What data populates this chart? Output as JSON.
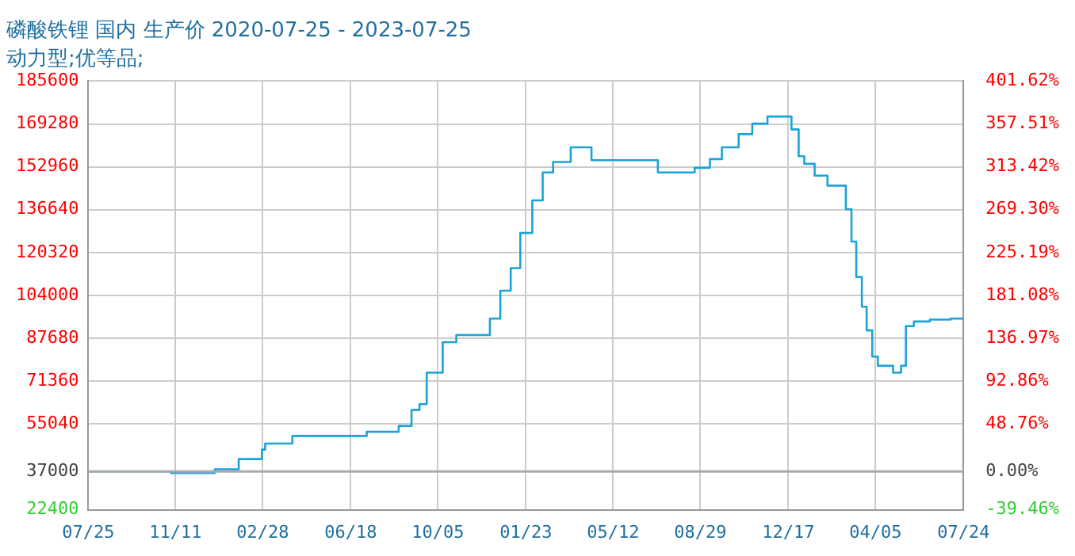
{
  "chart_data": {
    "type": "step",
    "title": "磷酸铁锂 国内 生产价 2020-07-25 - 2023-07-25",
    "subtitle": "动力型;优等品;",
    "x": [
      "2020-07-25",
      "2020-11-05",
      "2020-12-30",
      "2021-01-29",
      "2021-02-27",
      "2021-03-03",
      "2021-04-06",
      "2021-07-08",
      "2021-08-17",
      "2021-09-02",
      "2021-09-12",
      "2021-09-21",
      "2021-10-11",
      "2021-10-28",
      "2021-12-09",
      "2021-12-22",
      "2022-01-04",
      "2022-01-16",
      "2022-01-31",
      "2022-02-13",
      "2022-02-26",
      "2022-03-20",
      "2022-04-15",
      "2022-07-07",
      "2022-08-22",
      "2022-09-10",
      "2022-09-25",
      "2022-10-16",
      "2022-11-02",
      "2022-11-21",
      "2022-12-21",
      "2022-12-30",
      "2023-01-06",
      "2023-01-19",
      "2023-02-04",
      "2023-02-27",
      "2023-03-06",
      "2023-03-12",
      "2023-03-19",
      "2023-03-25",
      "2023-04-01",
      "2023-04-08",
      "2023-04-27",
      "2023-05-07",
      "2023-05-13",
      "2023-05-23",
      "2023-06-12",
      "2023-07-08",
      "2023-07-24"
    ],
    "series": [
      {
        "color": "#1aa3d9",
        "values": [
          37000,
          36400,
          37800,
          41700,
          45300,
          47600,
          50500,
          52100,
          54300,
          60400,
          62600,
          74600,
          86200,
          88900,
          95200,
          105800,
          114400,
          127800,
          140200,
          150800,
          154800,
          160400,
          155500,
          150800,
          152600,
          155900,
          160400,
          165400,
          169400,
          172100,
          167200,
          157000,
          154100,
          149600,
          145800,
          136800,
          124500,
          111000,
          99700,
          90700,
          80700,
          77200,
          74600,
          77200,
          92300,
          94100,
          94800,
          95200,
          95200
        ]
      }
    ],
    "xlim": [
      "2020-07-25",
      "2023-07-24"
    ],
    "xticks": [
      {
        "value": "2020-07-25",
        "label": "07/25"
      },
      {
        "value": "2020-11-11",
        "label": "11/11"
      },
      {
        "value": "2021-02-28",
        "label": "02/28"
      },
      {
        "value": "2021-06-18",
        "label": "06/18"
      },
      {
        "value": "2021-10-05",
        "label": "10/05"
      },
      {
        "value": "2022-01-23",
        "label": "01/23"
      },
      {
        "value": "2022-05-12",
        "label": "05/12"
      },
      {
        "value": "2022-08-29",
        "label": "08/29"
      },
      {
        "value": "2022-12-17",
        "label": "12/17"
      },
      {
        "value": "2023-04-05",
        "label": "04/05"
      },
      {
        "value": "2023-07-24",
        "label": "07/24"
      }
    ],
    "ylim": [
      22400,
      185600
    ],
    "yticks": [
      22400,
      37000,
      55040,
      71360,
      87680,
      104000,
      120320,
      136640,
      152960,
      169280,
      185600
    ],
    "y2lim": [
      -39.46,
      401.62
    ],
    "y2ticks": [
      {
        "value": -39.46,
        "label": "-39.46%"
      },
      {
        "value": 0,
        "label": "0.00%"
      },
      {
        "value": 48.76,
        "label": "48.76%"
      },
      {
        "value": 92.86,
        "label": "92.86%"
      },
      {
        "value": 136.97,
        "label": "136.97%"
      },
      {
        "value": 181.08,
        "label": "181.08%"
      },
      {
        "value": 225.19,
        "label": "225.19%"
      },
      {
        "value": 269.3,
        "label": "269.30%"
      },
      {
        "value": 313.42,
        "label": "313.42%"
      },
      {
        "value": 357.51,
        "label": "357.51%"
      },
      {
        "value": 401.62,
        "label": "401.62%"
      }
    ],
    "ref_lines": [
      {
        "axis": "y",
        "value": 37000,
        "color": "#aaaaaa"
      }
    ],
    "grid": true,
    "legend": false,
    "marker": "none",
    "line_style": "solid"
  }
}
